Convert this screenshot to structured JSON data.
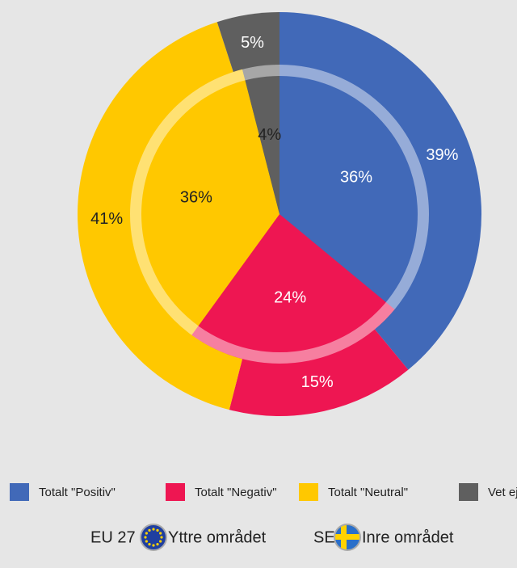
{
  "chart_data": {
    "type": "pie",
    "categories": [
      "Totalt \"Positiv\"",
      "Totalt \"Negativ\"",
      "Totalt \"Neutral\"",
      "Vet ej"
    ],
    "colors": [
      "#4169b8",
      "#ee1652",
      "#ffc800",
      "#5f5f5f"
    ],
    "series": [
      {
        "name": "EU 27",
        "region": "Yttre området",
        "values": [
          39,
          15,
          41,
          5
        ],
        "value_labels": [
          "39%",
          "15%",
          "41%",
          "5%"
        ]
      },
      {
        "name": "SE",
        "region": "Inre området",
        "values": [
          36,
          24,
          36,
          4
        ],
        "value_labels": [
          "36%",
          "24%",
          "36%",
          "4%"
        ]
      }
    ]
  }
}
